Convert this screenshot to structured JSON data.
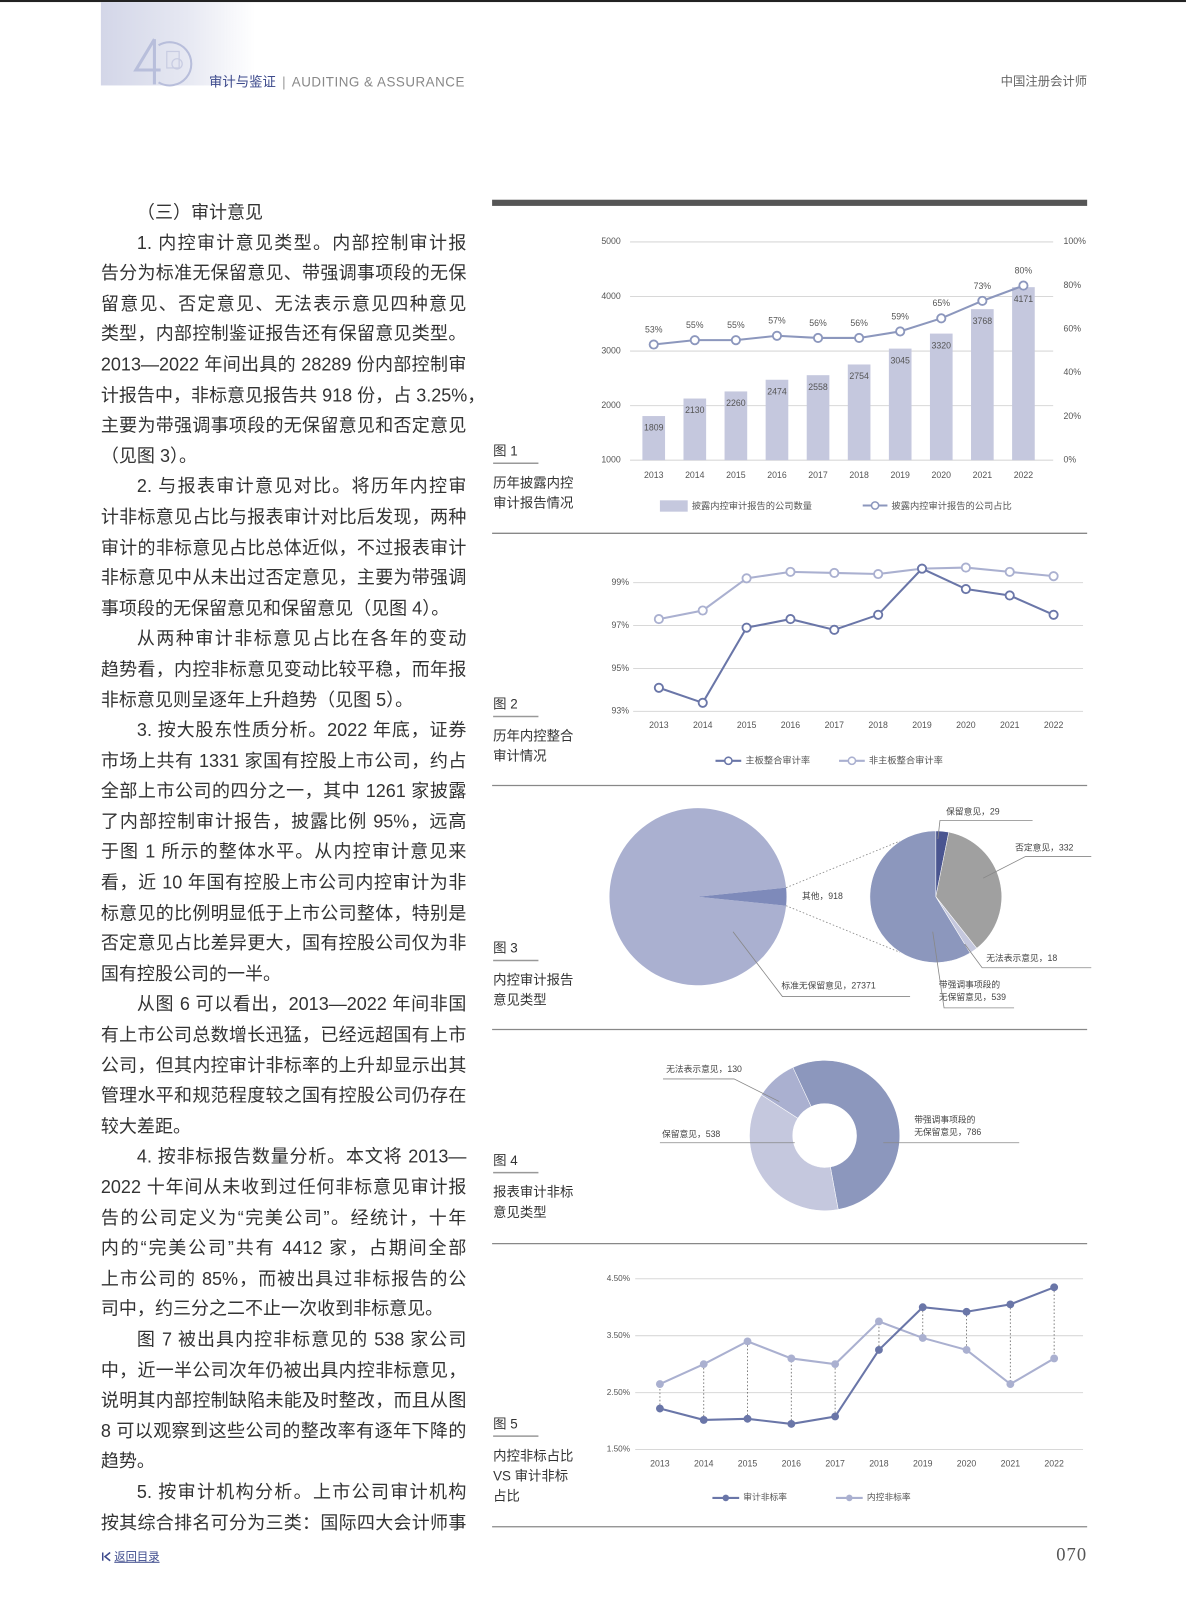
{
  "header": {
    "logo_text": "40",
    "section_cn": "审计与鉴证",
    "section_en": "AUDITING & ASSURANCE",
    "magazine": "中国注册会计师"
  },
  "body_paragraphs": [
    {
      "indent": true,
      "lines": [
        "（三）审计意见"
      ]
    },
    {
      "indent": true,
      "lines": [
        "1. 内控审计意见类型。内部控制审计报",
        "告分为标准无保留意见、带强调事项段的无保",
        "留意见、否定意见、无法表示意见四种意见",
        "类型，内部控制鉴证报告还有保留意见类型。",
        "2013—2022 年间出具的 28289 份内部控制审",
        "计报告中，非标意见报告共 918 份，占 3.25%，",
        "主要为带强调事项段的无保留意见和否定意见",
        "（见图 3）。"
      ]
    },
    {
      "indent": true,
      "lines": [
        "2. 与报表审计意见对比。将历年内控审",
        "计非标意见占比与报表审计对比后发现，两种",
        "审计的非标意见占比总体近似，不过报表审计",
        "非标意见中从未出过否定意见，主要为带强调",
        "事项段的无保留意见和保留意见（见图 4）。"
      ]
    },
    {
      "indent": true,
      "lines": [
        "从两种审计非标意见占比在各年的变动",
        "趋势看，内控非标意见变动比较平稳，而年报",
        "非标意见则呈逐年上升趋势（见图 5）。"
      ]
    },
    {
      "indent": true,
      "lines": [
        "3. 按大股东性质分析。2022 年底，证券",
        "市场上共有 1331 家国有控股上市公司，约占",
        "全部上市公司的四分之一，其中 1261 家披露",
        "了内部控制审计报告，披露比例 95%，远高",
        "于图 1 所示的整体水平。从内控审计意见来",
        "看，近 10 年国有控股上市公司内控审计为非",
        "标意见的比例明显低于上市公司整体，特别是",
        "否定意见占比差异更大，国有控股公司仅为非",
        "国有控股公司的一半。"
      ]
    },
    {
      "indent": true,
      "lines": [
        "从图 6 可以看出，2013—2022 年间非国",
        "有上市公司总数增长迅猛，已经远超国有上市",
        "公司，但其内控审计非标率的上升却显示出其",
        "管理水平和规范程度较之国有控股公司仍存在",
        "较大差距。"
      ]
    },
    {
      "indent": true,
      "lines": [
        "4. 按非标报告数量分析。本文将 2013—",
        "2022 十年间从未收到过任何非标意见审计报",
        "告的公司定义为“完美公司”。经统计，十年",
        "内的“完美公司”共有 4412 家，占期间全部",
        "上市公司的 85%，而被出具过非标报告的公",
        "司中，约三分之二不止一次收到非标意见。"
      ]
    },
    {
      "indent": true,
      "lines": [
        "图 7 被出具内控非标意见的 538 家公司",
        "中，近一半公司次年仍被出具内控非标意见，",
        "说明其内部控制缺陷未能及时整改，而且从图",
        "8 可以观察到这些公司的整改率有逐年下降的",
        "趋势。"
      ]
    },
    {
      "indent": true,
      "continues": true,
      "lines": [
        "5. 按审计机构分析。上市公司审计机构",
        "按其综合排名可分为三类：国际四大会计师事"
      ]
    }
  ],
  "figures": [
    {
      "label": "图 1",
      "caption": [
        "历年披露内控",
        "审计报告情况"
      ]
    },
    {
      "label": "图 2",
      "caption": [
        "历年内控整合",
        "审计情况"
      ]
    },
    {
      "label": "图 3",
      "caption": [
        "内控审计报告",
        "意见类型"
      ]
    },
    {
      "label": "图 4",
      "caption": [
        "报表审计非标",
        "意见类型"
      ]
    },
    {
      "label": "图 5",
      "caption": [
        "内控非标占比",
        "VS 审计非标",
        "占比"
      ]
    }
  ],
  "colors": {
    "bar": "#c5c8de",
    "line_mid": "#8c97bd",
    "line_dark": "#6a76a8",
    "line_light": "#aab0d0",
    "navy": "#4a5590",
    "gray": "#a0a0a0",
    "title_blue": "#3d4a8c"
  },
  "chart_data": [
    {
      "type": "bar+line",
      "categories": [
        "2013",
        "2014",
        "2015",
        "2016",
        "2017",
        "2018",
        "2019",
        "2020",
        "2021",
        "2022"
      ],
      "series": [
        {
          "name": "披露内控审计报告的公司数量",
          "type": "bar",
          "axis": "left",
          "values": [
            1809,
            2130,
            2260,
            2474,
            2558,
            2754,
            3045,
            3320,
            3768,
            4171
          ]
        },
        {
          "name": "披露内控审计报告的公司占比",
          "type": "line",
          "axis": "right",
          "values": [
            53,
            55,
            55,
            57,
            56,
            56,
            59,
            65,
            73,
            80
          ],
          "labels": [
            "53%",
            "55%",
            "55%",
            "57%",
            "56%",
            "56%",
            "59%",
            "65%",
            "73%",
            "80%"
          ]
        }
      ],
      "ylim": [
        1000,
        5000
      ],
      "yticks": [
        "5000",
        "4000",
        "3000",
        "2000",
        "1000"
      ],
      "y2lim": [
        0,
        100
      ],
      "y2ticks": [
        "100%",
        "80%",
        "60%",
        "40%",
        "20%",
        "0%"
      ],
      "grid": true,
      "legend": "bottom"
    },
    {
      "type": "line",
      "categories": [
        "2013",
        "2014",
        "2015",
        "2016",
        "2017",
        "2018",
        "2019",
        "2020",
        "2021",
        "2022"
      ],
      "series": [
        {
          "name": "主板整合审计率",
          "values": [
            94.1,
            93.4,
            96.9,
            97.3,
            96.8,
            97.5,
            99.65,
            98.7,
            98.4,
            97.5
          ]
        },
        {
          "name": "非主板整合审计率",
          "values": [
            97.3,
            97.7,
            99.2,
            99.5,
            99.45,
            99.4,
            99.65,
            99.7,
            99.5,
            99.3
          ]
        }
      ],
      "ylim": [
        93,
        100
      ],
      "yticks": [
        "99%",
        "97%",
        "95%",
        "93%"
      ],
      "grid": true,
      "legend": "bottom"
    },
    {
      "type": "pie-of-pie",
      "main": [
        {
          "name": "标准无保留意见",
          "value": 27371,
          "label": "标准无保留意见，27371"
        },
        {
          "name": "其他",
          "value": 918,
          "label": "其他，918"
        }
      ],
      "detail": [
        {
          "name": "保留意见",
          "value": 29,
          "label": "保留意见，29"
        },
        {
          "name": "否定意见",
          "value": 332,
          "label": "否定意见，332"
        },
        {
          "name": "无法表示意见",
          "value": 18,
          "label": "无法表示意见，18"
        },
        {
          "name": "带强调事项段的无保留意见",
          "value": 539,
          "label": [
            "带强调事项段的",
            "无保留意见，539"
          ]
        }
      ]
    },
    {
      "type": "donut",
      "slices": [
        {
          "name": "带强调事项段的无保留意见",
          "value": 786,
          "label": [
            "带强调事项段的",
            "无保留意见，786"
          ]
        },
        {
          "name": "保留意见",
          "value": 538,
          "label": "保留意见，538"
        },
        {
          "name": "无法表示意见",
          "value": 130,
          "label": "无法表示意见，130"
        }
      ]
    },
    {
      "type": "line",
      "categories": [
        "2013",
        "2014",
        "2015",
        "2016",
        "2017",
        "2018",
        "2019",
        "2020",
        "2021",
        "2022"
      ],
      "series": [
        {
          "name": "审计非标率",
          "values": [
            2.22,
            2.02,
            2.04,
            1.95,
            2.08,
            3.25,
            4.0,
            3.92,
            4.05,
            4.35
          ]
        },
        {
          "name": "内控非标率",
          "values": [
            2.65,
            3.0,
            3.4,
            3.1,
            3.0,
            3.75,
            3.46,
            3.25,
            2.65,
            3.1
          ]
        }
      ],
      "ylim": [
        1.5,
        4.5
      ],
      "yticks": [
        "4.50%",
        "3.50%",
        "2.50%",
        "1.50%"
      ],
      "grid": true,
      "legend": "bottom"
    }
  ],
  "footer": {
    "back_label": "返回目录",
    "page_number": "070"
  }
}
